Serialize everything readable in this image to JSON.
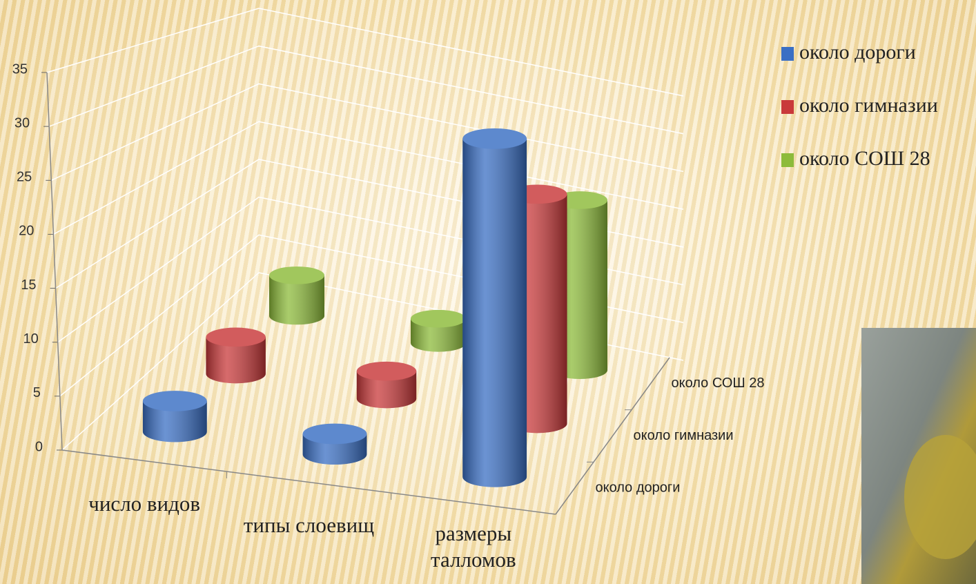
{
  "chart_data": {
    "type": "bar3d",
    "categories": [
      "число видов",
      "типы слоевищ",
      "размеры талломов"
    ],
    "series": [
      {
        "name": "около дороги",
        "color": "#3a6fc4",
        "values": [
          3,
          2,
          33
        ]
      },
      {
        "name": "около гимназии",
        "color": "#c9393a",
        "values": [
          4,
          3,
          25
        ]
      },
      {
        "name": "около СОШ 28",
        "color": "#8dbb3a",
        "values": [
          5,
          3,
          21
        ]
      }
    ],
    "ylim": [
      0,
      35
    ],
    "yticks": [
      0,
      5,
      10,
      15,
      20,
      25,
      30,
      35
    ],
    "grid": true,
    "legend": "top-right"
  }
}
